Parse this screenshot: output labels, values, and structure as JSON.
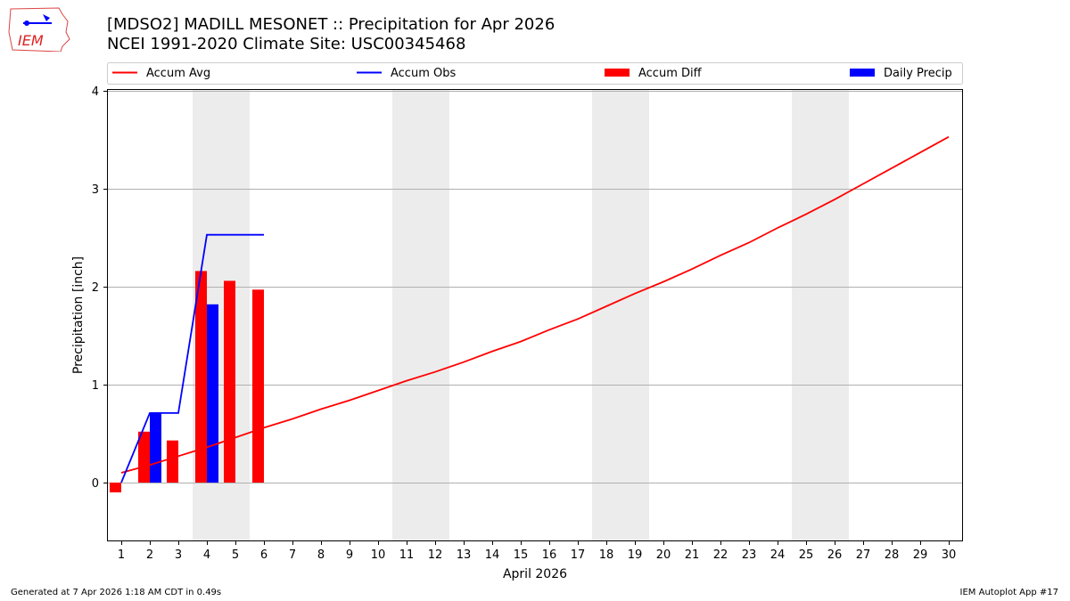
{
  "header": {
    "title_line1": "[MDSO2] MADILL MESONET :: Precipitation for Apr 2026",
    "title_line2": "NCEI 1991-2020 Climate Site: USC00345468",
    "logo_text": "IEM"
  },
  "footer": {
    "generated": "Generated at 7 Apr 2026 1:18 AM CDT in 0.49s",
    "app": "IEM Autoplot App #17"
  },
  "colors": {
    "avg": "#ff0000",
    "obs": "#0000ff",
    "diff": "#ff0000",
    "daily": "#0000ff",
    "weekend": "#ececec",
    "grid": "#b0b0b0"
  },
  "chart_data": {
    "type": "bar",
    "title": "[MDSO2] MADILL MESONET :: Precipitation for Apr 2026",
    "subtitle": "NCEI 1991-2020 Climate Site: USC00345468",
    "xlabel": "April 2026",
    "ylabel": "Precipitation [inch]",
    "ylim": [
      -0.6,
      4.02
    ],
    "yticks": [
      0,
      1,
      2,
      3,
      4
    ],
    "grid": true,
    "legend_position": "top",
    "legend": [
      "Accum Avg",
      "Accum Obs",
      "Accum Diff",
      "Daily Precip"
    ],
    "x": [
      1,
      2,
      3,
      4,
      5,
      6,
      7,
      8,
      9,
      10,
      11,
      12,
      13,
      14,
      15,
      16,
      17,
      18,
      19,
      20,
      21,
      22,
      23,
      24,
      25,
      26,
      27,
      28,
      29,
      30
    ],
    "weekend_spans": [
      [
        4,
        5
      ],
      [
        11,
        12
      ],
      [
        18,
        19
      ],
      [
        25,
        26
      ]
    ],
    "series": [
      {
        "name": "Accum Avg",
        "type": "line",
        "values": [
          0.1,
          0.18,
          0.27,
          0.36,
          0.46,
          0.56,
          0.65,
          0.75,
          0.84,
          0.94,
          1.04,
          1.13,
          1.23,
          1.34,
          1.44,
          1.56,
          1.67,
          1.8,
          1.93,
          2.05,
          2.18,
          2.32,
          2.45,
          2.6,
          2.74,
          2.89,
          3.05,
          3.21,
          3.37,
          3.53
        ]
      },
      {
        "name": "Accum Obs",
        "type": "line",
        "values": [
          0.0,
          0.71,
          0.71,
          2.53,
          2.53,
          2.53
        ]
      },
      {
        "name": "Accum Diff",
        "type": "bar",
        "values": [
          -0.1,
          0.52,
          0.43,
          2.16,
          2.06,
          1.97
        ]
      },
      {
        "name": "Daily Precip",
        "type": "bar",
        "values": [
          0.0,
          0.71,
          0.0,
          1.82,
          0.0,
          0.0
        ]
      }
    ]
  }
}
